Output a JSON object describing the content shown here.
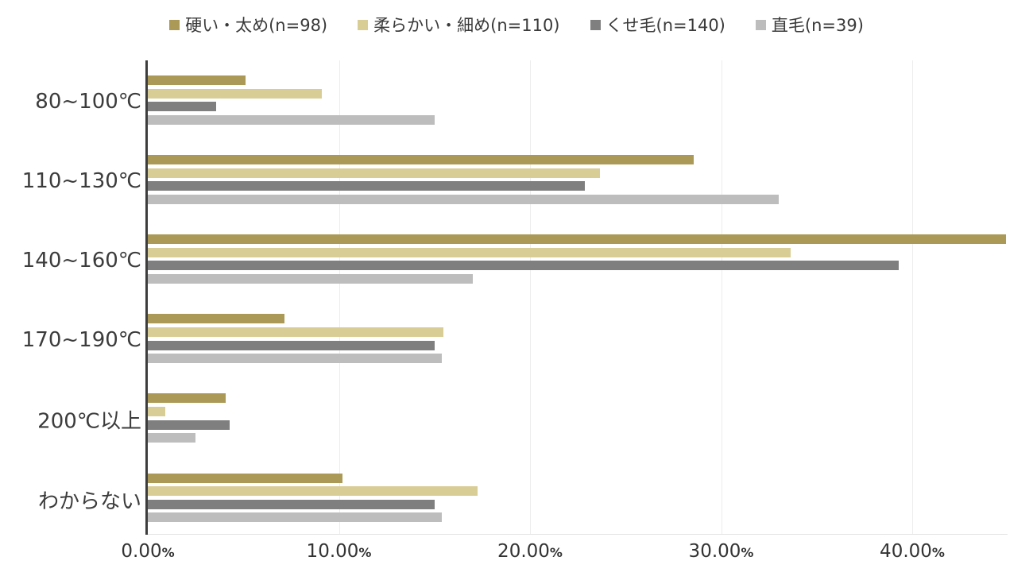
{
  "chart_data": {
    "type": "bar",
    "orientation": "horizontal",
    "title": "",
    "categories": [
      "80~100℃",
      "110~130℃",
      "140~160℃",
      "170~190℃",
      "200℃以上",
      "わからない"
    ],
    "series": [
      {
        "name": "硬い・太め(n=98)",
        "color": "#AB9A57",
        "values": [
          5.1,
          28.57,
          44.9,
          7.14,
          4.08,
          10.2
        ]
      },
      {
        "name": "柔らかい・細め(n=110)",
        "color": "#D9CD96",
        "values": [
          9.09,
          23.64,
          33.64,
          15.45,
          0.91,
          17.27
        ]
      },
      {
        "name": "くせ毛(n=140)",
        "color": "#7F7F7F",
        "values": [
          3.57,
          22.86,
          39.29,
          15.0,
          4.29,
          15.0
        ]
      },
      {
        "name": "直毛(n=39)",
        "color": "#BDBDBD",
        "values": [
          15.0,
          33.0,
          17.0,
          15.4,
          2.5,
          15.4
        ]
      }
    ],
    "x_axis": {
      "tick_labels": [
        "0.00%",
        "10.00%",
        "20.00%",
        "30.00%",
        "40.00%"
      ],
      "tick_values": [
        0,
        10,
        20,
        30,
        40
      ],
      "min": 0,
      "max": 45,
      "grid": true
    },
    "legend_position": "top",
    "colors": {
      "axis_line": "#3d3d3d",
      "gridline": "#ededed",
      "text": "#383838"
    }
  }
}
